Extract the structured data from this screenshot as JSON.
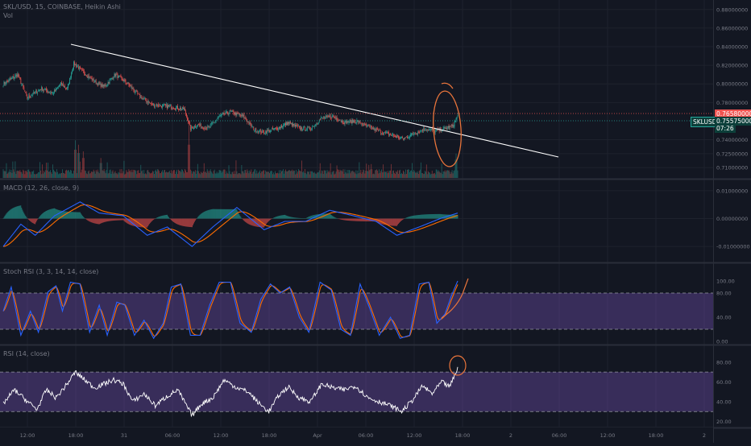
{
  "header": {
    "symbol_line": "SKL/USD, 15, COINBASE, Heikin Ashi",
    "vol_label": "Vol"
  },
  "legends": {
    "macd": "MACD (12, 26, close, 9)",
    "stoch": "Stoch RSI (3, 3, 14, 14, close)",
    "rsi": "RSI (14, close)"
  },
  "price_labels": {
    "last_price": "0.76580000",
    "symbol_tag": "SKLUSD",
    "current_price": "0.75575000",
    "countdown": "07:26"
  },
  "colors": {
    "background": "#131722",
    "up": "#26a69a",
    "down": "#ef5350",
    "macd_line": "#2962ff",
    "signal_line": "#ff6d00",
    "stoch_k": "#2962ff",
    "stoch_d": "#ff6d00",
    "band_fill": "#7e57c2",
    "rsi_line": "#ffffff",
    "annotation": "#e8743b",
    "trendline": "#ffffff"
  },
  "chart_data": [
    {
      "type": "candlestick",
      "title": "SKL/USD, 15, COINBASE, Heikin Ashi",
      "y_ticks": [
        "0.88000000",
        "0.86000000",
        "0.84000000",
        "0.82000000",
        "0.80000000",
        "0.78000000",
        "0.74000000",
        "0.72500000",
        "0.71000000"
      ],
      "ylim": [
        0.705,
        0.885
      ],
      "x_ticks": [
        "12:00",
        "18:00",
        "31",
        "06:00",
        "12:00",
        "18:00",
        "Apr",
        "06:00",
        "12:00",
        "18:00",
        "2",
        "06:00",
        "12:00",
        "18:00",
        "2"
      ],
      "key_points": [
        {
          "t": 0,
          "p": 0.8
        },
        {
          "t": 18,
          "p": 0.81
        },
        {
          "t": 30,
          "p": 0.785
        },
        {
          "t": 48,
          "p": 0.795
        },
        {
          "t": 62,
          "p": 0.79
        },
        {
          "t": 72,
          "p": 0.8
        },
        {
          "t": 80,
          "p": 0.795
        },
        {
          "t": 88,
          "p": 0.822
        },
        {
          "t": 96,
          "p": 0.816
        },
        {
          "t": 106,
          "p": 0.808
        },
        {
          "t": 118,
          "p": 0.8
        },
        {
          "t": 126,
          "p": 0.797
        },
        {
          "t": 140,
          "p": 0.81
        },
        {
          "t": 156,
          "p": 0.8
        },
        {
          "t": 170,
          "p": 0.787
        },
        {
          "t": 186,
          "p": 0.778
        },
        {
          "t": 204,
          "p": 0.776
        },
        {
          "t": 226,
          "p": 0.773
        },
        {
          "t": 234,
          "p": 0.752
        },
        {
          "t": 242,
          "p": 0.756
        },
        {
          "t": 256,
          "p": 0.752
        },
        {
          "t": 270,
          "p": 0.765
        },
        {
          "t": 284,
          "p": 0.77
        },
        {
          "t": 300,
          "p": 0.765
        },
        {
          "t": 314,
          "p": 0.751
        },
        {
          "t": 326,
          "p": 0.748
        },
        {
          "t": 342,
          "p": 0.752
        },
        {
          "t": 356,
          "p": 0.758
        },
        {
          "t": 372,
          "p": 0.752
        },
        {
          "t": 384,
          "p": 0.752
        },
        {
          "t": 398,
          "p": 0.763
        },
        {
          "t": 412,
          "p": 0.765
        },
        {
          "t": 426,
          "p": 0.759
        },
        {
          "t": 442,
          "p": 0.76
        },
        {
          "t": 458,
          "p": 0.753
        },
        {
          "t": 474,
          "p": 0.748
        },
        {
          "t": 486,
          "p": 0.745
        },
        {
          "t": 500,
          "p": 0.741
        },
        {
          "t": 514,
          "p": 0.747
        },
        {
          "t": 528,
          "p": 0.752
        },
        {
          "t": 540,
          "p": 0.749
        },
        {
          "t": 552,
          "p": 0.752
        },
        {
          "t": 562,
          "p": 0.755
        },
        {
          "t": 568,
          "p": 0.7657
        }
      ],
      "volume_spikes": [
        {
          "t": 90,
          "v": 0.85
        },
        {
          "t": 94,
          "v": 0.75
        },
        {
          "t": 100,
          "v": 0.6
        },
        {
          "t": 122,
          "v": 0.45
        },
        {
          "t": 232,
          "v": 1.0
        },
        {
          "t": 566,
          "v": 0.55
        }
      ]
    },
    {
      "type": "macd",
      "title": "MACD (12, 26, close, 9)",
      "y_ticks": [
        "0.01000000",
        "0.00000000",
        "-0.01000000"
      ],
      "ylim": [
        -0.014,
        0.012
      ],
      "series": [
        {
          "name": "MACD"
        },
        {
          "name": "Signal"
        },
        {
          "name": "Histogram"
        }
      ],
      "key_points": [
        {
          "t": 0,
          "m": -0.01
        },
        {
          "t": 22,
          "m": -0.002
        },
        {
          "t": 40,
          "m": -0.006
        },
        {
          "t": 64,
          "m": 0.001
        },
        {
          "t": 96,
          "m": 0.006
        },
        {
          "t": 120,
          "m": 0.002
        },
        {
          "t": 150,
          "m": 0.001
        },
        {
          "t": 180,
          "m": -0.006
        },
        {
          "t": 205,
          "m": -0.003
        },
        {
          "t": 236,
          "m": -0.01
        },
        {
          "t": 262,
          "m": -0.003
        },
        {
          "t": 292,
          "m": 0.004
        },
        {
          "t": 326,
          "m": -0.004
        },
        {
          "t": 352,
          "m": -0.001
        },
        {
          "t": 378,
          "m": -0.001
        },
        {
          "t": 408,
          "m": 0.003
        },
        {
          "t": 438,
          "m": 0.001
        },
        {
          "t": 466,
          "m": -0.001
        },
        {
          "t": 492,
          "m": -0.006
        },
        {
          "t": 520,
          "m": -0.003
        },
        {
          "t": 546,
          "m": 0.0
        },
        {
          "t": 568,
          "m": 0.002
        }
      ]
    },
    {
      "type": "line",
      "title": "Stoch RSI (3, 3, 14, 14, close)",
      "y_ticks": [
        "100.00",
        "80.00",
        "40.00",
        "0.00"
      ],
      "ylim": [
        0,
        120
      ],
      "band": [
        20,
        80
      ],
      "series": [
        {
          "name": "K"
        },
        {
          "name": "D"
        }
      ],
      "key_points": [
        {
          "t": 0,
          "k": 50
        },
        {
          "t": 10,
          "k": 90
        },
        {
          "t": 22,
          "k": 10
        },
        {
          "t": 34,
          "k": 50
        },
        {
          "t": 44,
          "k": 15
        },
        {
          "t": 56,
          "k": 82
        },
        {
          "t": 66,
          "k": 92
        },
        {
          "t": 74,
          "k": 50
        },
        {
          "t": 84,
          "k": 98
        },
        {
          "t": 96,
          "k": 95
        },
        {
          "t": 108,
          "k": 15
        },
        {
          "t": 120,
          "k": 60
        },
        {
          "t": 130,
          "k": 10
        },
        {
          "t": 142,
          "k": 65
        },
        {
          "t": 152,
          "k": 60
        },
        {
          "t": 164,
          "k": 10
        },
        {
          "t": 176,
          "k": 35
        },
        {
          "t": 188,
          "k": 5
        },
        {
          "t": 200,
          "k": 30
        },
        {
          "t": 210,
          "k": 90
        },
        {
          "t": 222,
          "k": 95
        },
        {
          "t": 234,
          "k": 10
        },
        {
          "t": 246,
          "k": 10
        },
        {
          "t": 258,
          "k": 60
        },
        {
          "t": 270,
          "k": 98
        },
        {
          "t": 284,
          "k": 98
        },
        {
          "t": 296,
          "k": 30
        },
        {
          "t": 310,
          "k": 15
        },
        {
          "t": 322,
          "k": 70
        },
        {
          "t": 334,
          "k": 95
        },
        {
          "t": 346,
          "k": 80
        },
        {
          "t": 358,
          "k": 90
        },
        {
          "t": 370,
          "k": 40
        },
        {
          "t": 382,
          "k": 15
        },
        {
          "t": 396,
          "k": 98
        },
        {
          "t": 410,
          "k": 85
        },
        {
          "t": 422,
          "k": 20
        },
        {
          "t": 434,
          "k": 10
        },
        {
          "t": 446,
          "k": 95
        },
        {
          "t": 458,
          "k": 55
        },
        {
          "t": 470,
          "k": 10
        },
        {
          "t": 484,
          "k": 40
        },
        {
          "t": 496,
          "k": 5
        },
        {
          "t": 508,
          "k": 10
        },
        {
          "t": 520,
          "k": 95
        },
        {
          "t": 532,
          "k": 98
        },
        {
          "t": 542,
          "k": 30
        },
        {
          "t": 552,
          "k": 45
        },
        {
          "t": 560,
          "k": 75
        },
        {
          "t": 568,
          "k": 100
        }
      ]
    },
    {
      "type": "line",
      "title": "RSI (14, close)",
      "y_ticks": [
        "80.00",
        "60.00",
        "40.00",
        "20.00"
      ],
      "ylim": [
        18,
        88
      ],
      "band": [
        30,
        70
      ],
      "series": [
        {
          "name": "RSI"
        }
      ],
      "key_points": [
        {
          "t": 0,
          "r": 38
        },
        {
          "t": 14,
          "r": 52
        },
        {
          "t": 28,
          "r": 42
        },
        {
          "t": 42,
          "r": 32
        },
        {
          "t": 54,
          "r": 52
        },
        {
          "t": 66,
          "r": 44
        },
        {
          "t": 80,
          "r": 58
        },
        {
          "t": 90,
          "r": 70
        },
        {
          "t": 102,
          "r": 62
        },
        {
          "t": 114,
          "r": 54
        },
        {
          "t": 126,
          "r": 58
        },
        {
          "t": 138,
          "r": 62
        },
        {
          "t": 150,
          "r": 58
        },
        {
          "t": 162,
          "r": 40
        },
        {
          "t": 176,
          "r": 48
        },
        {
          "t": 190,
          "r": 36
        },
        {
          "t": 204,
          "r": 45
        },
        {
          "t": 218,
          "r": 52
        },
        {
          "t": 236,
          "r": 26
        },
        {
          "t": 248,
          "r": 38
        },
        {
          "t": 262,
          "r": 44
        },
        {
          "t": 276,
          "r": 62
        },
        {
          "t": 290,
          "r": 55
        },
        {
          "t": 306,
          "r": 50
        },
        {
          "t": 320,
          "r": 38
        },
        {
          "t": 332,
          "r": 30
        },
        {
          "t": 344,
          "r": 46
        },
        {
          "t": 356,
          "r": 55
        },
        {
          "t": 370,
          "r": 44
        },
        {
          "t": 384,
          "r": 40
        },
        {
          "t": 398,
          "r": 58
        },
        {
          "t": 412,
          "r": 54
        },
        {
          "t": 426,
          "r": 52
        },
        {
          "t": 440,
          "r": 56
        },
        {
          "t": 456,
          "r": 44
        },
        {
          "t": 470,
          "r": 40
        },
        {
          "t": 484,
          "r": 36
        },
        {
          "t": 498,
          "r": 30
        },
        {
          "t": 512,
          "r": 42
        },
        {
          "t": 524,
          "r": 56
        },
        {
          "t": 536,
          "r": 48
        },
        {
          "t": 548,
          "r": 60
        },
        {
          "t": 558,
          "r": 55
        },
        {
          "t": 568,
          "r": 74
        }
      ]
    }
  ]
}
